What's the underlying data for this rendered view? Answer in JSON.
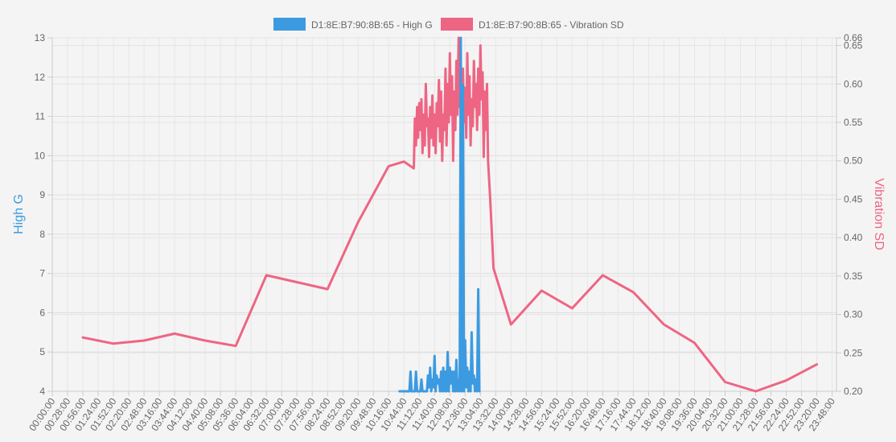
{
  "chart_data": {
    "type": "line",
    "title": "",
    "legend": {
      "position": "top",
      "entries": [
        {
          "label": "D1:8E:B7:90:8B:65 - High G",
          "color": "#3c9be0"
        },
        {
          "label": "D1:8E:B7:90:8B:65 - Vibration SD",
          "color": "#ee6583"
        }
      ]
    },
    "y_left": {
      "label": "High G",
      "color": "#3c9be0",
      "min": 4,
      "max": 13,
      "ticks": [
        "4",
        "5",
        "6",
        "7",
        "8",
        "9",
        "10",
        "11",
        "12",
        "13"
      ]
    },
    "y_right": {
      "label": "Vibration SD",
      "color": "#ee6583",
      "min": 0.2,
      "max": 0.66,
      "ticks": [
        "0.20",
        "0.25",
        "0.30",
        "0.35",
        "0.40",
        "0.45",
        "0.50",
        "0.55",
        "0.60",
        "0.65",
        "0.66"
      ]
    },
    "x_axis": {
      "min_minutes": 0,
      "max_minutes": 1436,
      "tick_labels": [
        "00:00:00",
        "00:28:00",
        "00:56:00",
        "01:24:00",
        "01:52:00",
        "02:20:00",
        "02:48:00",
        "03:16:00",
        "03:44:00",
        "04:12:00",
        "04:40:00",
        "05:08:00",
        "05:36:00",
        "06:04:00",
        "06:32:00",
        "07:00:00",
        "07:28:00",
        "07:56:00",
        "08:24:00",
        "08:52:00",
        "09:20:00",
        "09:48:00",
        "10:16:00",
        "10:44:00",
        "11:12:00",
        "11:40:00",
        "12:08:00",
        "12:36:00",
        "13:04:00",
        "13:32:00",
        "14:00:00",
        "14:28:00",
        "14:56:00",
        "15:24:00",
        "15:52:00",
        "16:20:00",
        "16:48:00",
        "17:16:00",
        "17:44:00",
        "18:12:00",
        "18:40:00",
        "19:08:00",
        "19:36:00",
        "20:04:00",
        "20:32:00",
        "21:00:00",
        "21:28:00",
        "21:56:00",
        "22:24:00",
        "22:52:00",
        "23:20:00",
        "23:48:00"
      ]
    },
    "grid": true,
    "series": [
      {
        "name": "D1:8E:B7:90:8B:65 - Vibration SD",
        "axis": "right",
        "color": "#ee6583",
        "points": [
          [
            "00:56:00",
            0.27
          ],
          [
            "01:52:00",
            0.262
          ],
          [
            "02:48:00",
            0.266
          ],
          [
            "03:44:00",
            0.275
          ],
          [
            "04:40:00",
            0.266
          ],
          [
            "05:36:00",
            0.259
          ],
          [
            "06:32:00",
            0.351
          ],
          [
            "07:28:00",
            0.342
          ],
          [
            "08:24:00",
            0.333
          ],
          [
            "09:20:00",
            0.42
          ],
          [
            "10:16:00",
            0.493
          ],
          [
            "10:44:00",
            0.499
          ],
          [
            "11:02:00",
            0.49
          ],
          [
            "11:04:00",
            0.555
          ],
          [
            "11:06:00",
            0.52
          ],
          [
            "11:08:00",
            0.57
          ],
          [
            "11:10:00",
            0.53
          ],
          [
            "11:12:00",
            0.575
          ],
          [
            "11:14:00",
            0.54
          ],
          [
            "11:16:00",
            0.58
          ],
          [
            "11:18:00",
            0.51
          ],
          [
            "11:20:00",
            0.56
          ],
          [
            "11:22:00",
            0.52
          ],
          [
            "11:24:00",
            0.6
          ],
          [
            "11:26:00",
            0.545
          ],
          [
            "11:28:00",
            0.555
          ],
          [
            "11:30:00",
            0.505
          ],
          [
            "11:32:00",
            0.57
          ],
          [
            "11:34:00",
            0.53
          ],
          [
            "11:36:00",
            0.585
          ],
          [
            "11:38:00",
            0.52
          ],
          [
            "11:40:00",
            0.56
          ],
          [
            "11:42:00",
            0.51
          ],
          [
            "11:44:00",
            0.575
          ],
          [
            "11:46:00",
            0.545
          ],
          [
            "11:48:00",
            0.605
          ],
          [
            "11:50:00",
            0.525
          ],
          [
            "11:52:00",
            0.59
          ],
          [
            "11:54:00",
            0.5
          ],
          [
            "11:56:00",
            0.56
          ],
          [
            "11:58:00",
            0.54
          ],
          [
            "12:00:00",
            0.62
          ],
          [
            "12:02:00",
            0.52
          ],
          [
            "12:04:00",
            0.6
          ],
          [
            "12:06:00",
            0.55
          ],
          [
            "12:08:00",
            0.64
          ],
          [
            "12:10:00",
            0.56
          ],
          [
            "12:12:00",
            0.61
          ],
          [
            "12:14:00",
            0.5
          ],
          [
            "12:16:00",
            0.59
          ],
          [
            "12:18:00",
            0.54
          ],
          [
            "12:20:00",
            0.63
          ],
          [
            "12:22:00",
            0.56
          ],
          [
            "12:24:00",
            0.66
          ],
          [
            "12:26:00",
            0.57
          ],
          [
            "12:28:00",
            0.6
          ],
          [
            "12:30:00",
            0.51
          ],
          [
            "12:32:00",
            0.62
          ],
          [
            "12:34:00",
            0.55
          ],
          [
            "12:36:00",
            0.595
          ],
          [
            "12:38:00",
            0.53
          ],
          [
            "12:40:00",
            0.64
          ],
          [
            "12:42:00",
            0.56
          ],
          [
            "12:44:00",
            0.61
          ],
          [
            "12:46:00",
            0.52
          ],
          [
            "12:48:00",
            0.58
          ],
          [
            "12:50:00",
            0.545
          ],
          [
            "12:52:00",
            0.63
          ],
          [
            "12:54:00",
            0.57
          ],
          [
            "12:56:00",
            0.6
          ],
          [
            "12:58:00",
            0.54
          ],
          [
            "13:00:00",
            0.62
          ],
          [
            "13:02:00",
            0.56
          ],
          [
            "13:04:00",
            0.65
          ],
          [
            "13:06:00",
            0.58
          ],
          [
            "13:08:00",
            0.615
          ],
          [
            "13:10:00",
            0.505
          ],
          [
            "13:12:00",
            0.59
          ],
          [
            "13:14:00",
            0.54
          ],
          [
            "13:16:00",
            0.6
          ],
          [
            "13:18:00",
            0.5
          ],
          [
            "13:22:00",
            0.45
          ],
          [
            "13:28:00",
            0.36
          ],
          [
            "14:00:00",
            0.287
          ],
          [
            "14:56:00",
            0.331
          ],
          [
            "15:52:00",
            0.308
          ],
          [
            "16:48:00",
            0.351
          ],
          [
            "17:44:00",
            0.329
          ],
          [
            "18:40:00",
            0.287
          ],
          [
            "19:36:00",
            0.263
          ],
          [
            "20:32:00",
            0.212
          ],
          [
            "21:28:00",
            0.2
          ],
          [
            "22:24:00",
            0.214
          ],
          [
            "23:20:00",
            0.235
          ]
        ]
      },
      {
        "name": "D1:8E:B7:90:8B:65 - High G",
        "axis": "left",
        "color": "#3c9be0",
        "points": [
          [
            "10:36:00",
            4.0
          ],
          [
            "10:50:00",
            4.0
          ],
          [
            "10:54:00",
            4.0
          ],
          [
            "10:56:00",
            4.5
          ],
          [
            "10:58:00",
            4.0
          ],
          [
            "11:04:00",
            4.0
          ],
          [
            "11:06:00",
            4.5
          ],
          [
            "11:08:00",
            4.0
          ],
          [
            "11:14:00",
            4.0
          ],
          [
            "11:16:00",
            4.3
          ],
          [
            "11:18:00",
            4.0
          ],
          [
            "11:26:00",
            4.0
          ],
          [
            "11:28:00",
            4.4
          ],
          [
            "11:30:00",
            4.1
          ],
          [
            "11:32:00",
            4.6
          ],
          [
            "11:34:00",
            4.0
          ],
          [
            "11:36:00",
            4.3
          ],
          [
            "11:38:00",
            4.1
          ],
          [
            "11:40:00",
            4.9
          ],
          [
            "11:42:00",
            4.0
          ],
          [
            "11:44:00",
            4.4
          ],
          [
            "11:46:00",
            4.2
          ],
          [
            "11:48:00",
            4.3
          ],
          [
            "11:50:00",
            4.0
          ],
          [
            "11:52:00",
            4.5
          ],
          [
            "11:54:00",
            4.0
          ],
          [
            "11:56:00",
            4.6
          ],
          [
            "11:58:00",
            4.0
          ],
          [
            "12:00:00",
            4.5
          ],
          [
            "12:02:00",
            4.0
          ],
          [
            "12:04:00",
            5.0
          ],
          [
            "12:06:00",
            4.0
          ],
          [
            "12:08:00",
            4.6
          ],
          [
            "12:10:00",
            4.2
          ],
          [
            "12:12:00",
            4.5
          ],
          [
            "12:14:00",
            4.0
          ],
          [
            "12:16:00",
            4.5
          ],
          [
            "12:18:00",
            4.0
          ],
          [
            "12:20:00",
            4.8
          ],
          [
            "12:22:00",
            4.0
          ],
          [
            "12:24:00",
            4.3
          ],
          [
            "12:26:00",
            4.0
          ],
          [
            "12:28:00",
            13.0
          ],
          [
            "12:30:00",
            4.0
          ],
          [
            "12:32:00",
            11.8
          ],
          [
            "12:34:00",
            4.0
          ],
          [
            "12:36:00",
            5.3
          ],
          [
            "12:38:00",
            4.1
          ],
          [
            "12:40:00",
            4.6
          ],
          [
            "12:42:00",
            4.0
          ],
          [
            "12:44:00",
            4.5
          ],
          [
            "12:46:00",
            4.0
          ],
          [
            "12:48:00",
            5.5
          ],
          [
            "12:50:00",
            4.2
          ],
          [
            "12:52:00",
            4.4
          ],
          [
            "12:54:00",
            4.0
          ],
          [
            "12:56:00",
            4.3
          ],
          [
            "12:58:00",
            4.0
          ],
          [
            "13:00:00",
            6.6
          ],
          [
            "13:02:00",
            4.0
          ]
        ]
      }
    ]
  }
}
